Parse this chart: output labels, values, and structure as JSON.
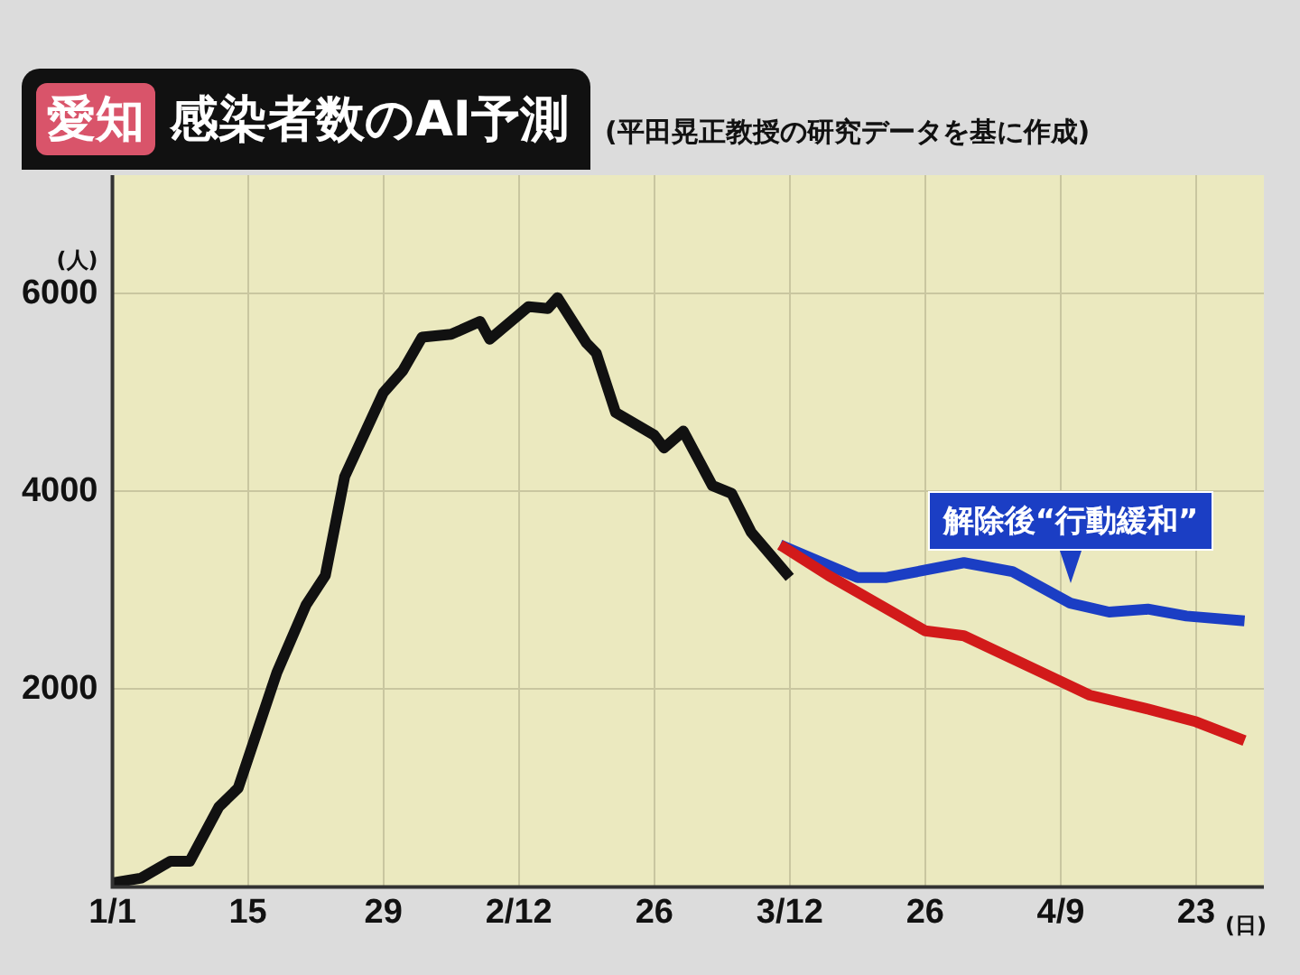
{
  "chart_data": {
    "type": "line",
    "title": "愛知 感染者数のAI予測",
    "subtitle": "(平田晃正教授の研究データを基に作成)",
    "ylabel": "(人)",
    "xlabel": "(日)",
    "xlim": [
      "--01-01",
      "--04-30"
    ],
    "xticks": [
      {
        "value": "--01-01",
        "label": "1/1"
      },
      {
        "value": "--01-15",
        "label": "15"
      },
      {
        "value": "--01-29",
        "label": "29"
      },
      {
        "value": "--02-12",
        "label": "2/12"
      },
      {
        "value": "--02-26",
        "label": "26"
      },
      {
        "value": "--03-12",
        "label": "3/12"
      },
      {
        "value": "--03-26",
        "label": "26"
      },
      {
        "value": "--04-09",
        "label": "4/9"
      },
      {
        "value": "--04-23",
        "label": "23"
      }
    ],
    "ylim": [
      0,
      7200
    ],
    "yticks": [
      2000,
      4000,
      6000
    ],
    "grid": true,
    "legend": false,
    "marker": "none",
    "line_style": "solid",
    "series": [
      {
        "color": "#111111",
        "x": [
          "--01-01",
          "--01-04",
          "--01-07",
          "--01-09",
          "--01-12",
          "--01-14",
          "--01-18",
          "--01-21",
          "--01-23",
          "--01-25",
          "--01-29",
          "--01-31",
          "--02-02",
          "--02-05",
          "--02-08",
          "--02-09",
          "--02-13",
          "--02-15",
          "--02-16",
          "--02-19",
          "--02-20",
          "--02-22",
          "--02-26",
          "--02-27",
          "--03-01",
          "--03-04",
          "--03-06",
          "--03-08",
          "--03-12"
        ],
        "values": [
          40,
          90,
          260,
          260,
          810,
          1000,
          2170,
          2850,
          3150,
          4150,
          5000,
          5220,
          5560,
          5590,
          5720,
          5540,
          5870,
          5850,
          5960,
          5500,
          5400,
          4800,
          4570,
          4440,
          4610,
          4060,
          3980,
          3590,
          3130
        ]
      },
      {
        "color": "#d21a1a",
        "x": [
          "--03-11",
          "--03-16",
          "--03-26",
          "--03-30",
          "--04-04",
          "--04-12",
          "--04-18",
          "--04-23",
          "--04-28"
        ],
        "values": [
          3460,
          3150,
          2590,
          2540,
          2310,
          1940,
          1800,
          1670,
          1480
        ]
      },
      {
        "name": "解除後“行動緩和”",
        "color": "#1b3ec4",
        "x": [
          "--03-11",
          "--03-19",
          "--03-22",
          "--03-30",
          "--04-04",
          "--04-10",
          "--04-14",
          "--04-18",
          "--04-22",
          "--04-28"
        ],
        "values": [
          3460,
          3130,
          3130,
          3280,
          3190,
          2870,
          2780,
          2810,
          2740,
          2690
        ]
      }
    ]
  }
}
